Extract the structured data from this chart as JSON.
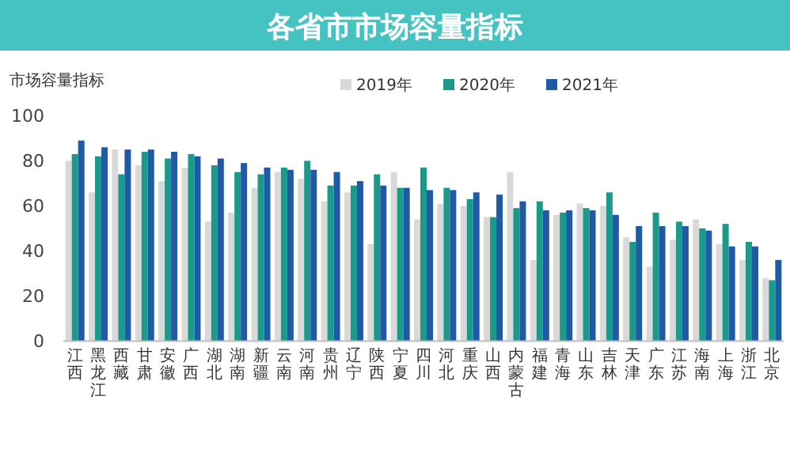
{
  "chart_data": {
    "type": "bar",
    "title": "各省市市场容量指标",
    "ylabel": "市场容量指标",
    "categories": [
      "江西",
      "黑龙江",
      "西藏",
      "甘肃",
      "安徽",
      "广西",
      "湖北",
      "湖南",
      "新疆",
      "云南",
      "河南",
      "贵州",
      "辽宁",
      "陕西",
      "宁夏",
      "四川",
      "河北",
      "重庆",
      "山西",
      "内蒙古",
      "福建",
      "青海",
      "山东",
      "吉林",
      "天津",
      "广东",
      "江苏",
      "海南",
      "上海",
      "浙江",
      "北京"
    ],
    "series": [
      {
        "name": "2019年",
        "color": "#d9d9d9",
        "values": [
          80,
          66,
          85,
          78,
          71,
          77,
          53,
          57,
          68,
          75,
          72,
          62,
          66,
          43,
          75,
          54,
          61,
          60,
          55,
          75,
          36,
          56,
          61,
          60,
          46,
          33,
          45,
          54,
          43,
          36,
          28
        ]
      },
      {
        "name": "2020年",
        "color": "#1a9a8a",
        "values": [
          83,
          82,
          74,
          84,
          81,
          83,
          78,
          75,
          74,
          77,
          80,
          69,
          69,
          74,
          68,
          77,
          68,
          63,
          55,
          59,
          62,
          57,
          59,
          66,
          44,
          57,
          53,
          50,
          52,
          44,
          27
        ]
      },
      {
        "name": "2021年",
        "color": "#1f5aa6",
        "values": [
          89,
          86,
          85,
          85,
          84,
          82,
          81,
          79,
          77,
          76,
          76,
          75,
          71,
          69,
          68,
          67,
          67,
          66,
          65,
          62,
          58,
          58,
          58,
          56,
          51,
          51,
          51,
          49,
          42,
          42,
          36
        ]
      }
    ],
    "ylim": [
      0,
      100
    ],
    "yticks": [
      0,
      20,
      40,
      60,
      80,
      100
    ],
    "legend": "top"
  }
}
